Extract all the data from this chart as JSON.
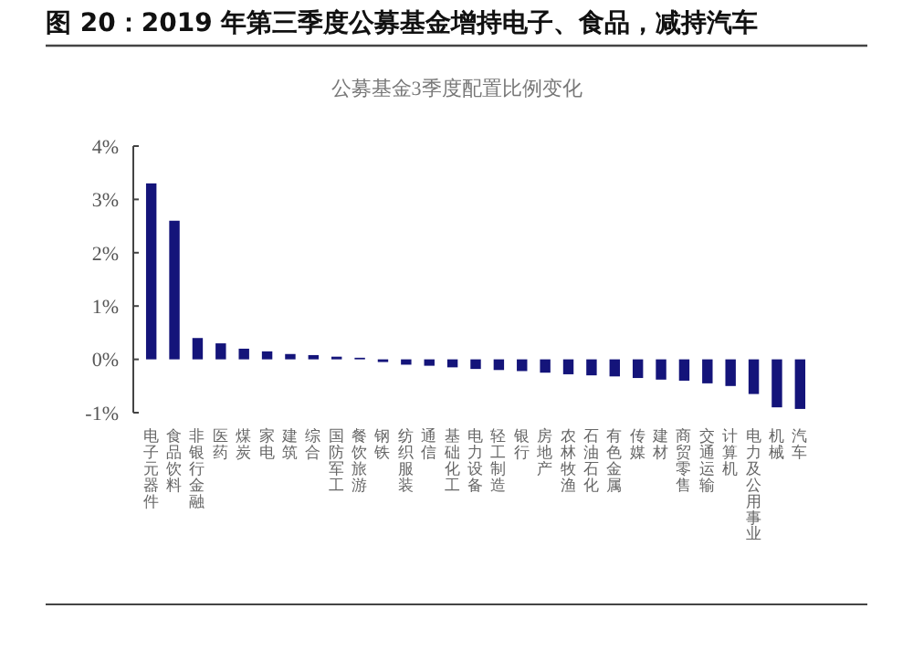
{
  "chart_data": {
    "type": "bar",
    "title": "图 20：2019 年第三季度公募基金增持电子、食品，减持汽车",
    "subtitle": "公募基金3季度配置比例变化",
    "categories": [
      "电子元器件",
      "食品饮料",
      "非银行金融",
      "医药",
      "煤炭",
      "家电",
      "建筑",
      "综合",
      "国防军工",
      "餐饮旅游",
      "钢铁",
      "纺织服装",
      "通信",
      "基础化工",
      "电力设备",
      "轻工制造",
      "银行",
      "房地产",
      "农林牧渔",
      "石油石化",
      "有色金属",
      "传媒",
      "建材",
      "商贸零售",
      "交通运输",
      "计算机",
      "电力及公用事业",
      "机械",
      "汽车"
    ],
    "values": [
      3.3,
      2.6,
      0.4,
      0.3,
      0.2,
      0.15,
      0.1,
      0.08,
      0.05,
      0.03,
      -0.05,
      -0.1,
      -0.12,
      -0.15,
      -0.18,
      -0.2,
      -0.22,
      -0.25,
      -0.28,
      -0.3,
      -0.32,
      -0.35,
      -0.38,
      -0.4,
      -0.45,
      -0.5,
      -0.65,
      -0.9,
      -0.93
    ],
    "color": "#14147a",
    "ylim": [
      -1,
      4
    ],
    "yticks": [
      {
        "value": -1,
        "label": "-1%"
      },
      {
        "value": 0,
        "label": "0%"
      },
      {
        "value": 1,
        "label": "1%"
      },
      {
        "value": 2,
        "label": "2%"
      },
      {
        "value": 3,
        "label": "3%"
      },
      {
        "value": 4,
        "label": "4%"
      }
    ],
    "grid": false
  }
}
